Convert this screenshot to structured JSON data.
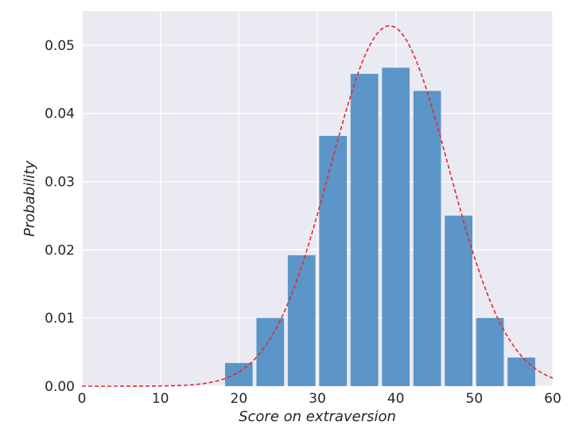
{
  "chart_data": {
    "type": "bar",
    "title": "",
    "xlabel": "Score on extraversion",
    "ylabel": "Probability",
    "xlim": [
      0,
      60
    ],
    "ylim": [
      0,
      0.055
    ],
    "xticks": [
      0,
      10,
      20,
      30,
      40,
      50,
      60
    ],
    "xtick_labels": [
      "0",
      "10",
      "20",
      "30",
      "40",
      "50",
      "60"
    ],
    "yticks": [
      0,
      0.01,
      0.02,
      0.03,
      0.04,
      0.05
    ],
    "ytick_labels": [
      "0.00",
      "0.01",
      "0.02",
      "0.03",
      "0.04",
      "0.05"
    ],
    "grid": true,
    "bar_width": 4,
    "bars": {
      "x": [
        20,
        24,
        28,
        32,
        36,
        40,
        44,
        48,
        52,
        56
      ],
      "values": [
        0.0034,
        0.01,
        0.0192,
        0.0367,
        0.0458,
        0.0467,
        0.0433,
        0.025,
        0.01,
        0.0042
      ]
    },
    "curve": {
      "style": "dashed",
      "distribution": "normal",
      "mean": 39.2,
      "sd": 7.55
    },
    "colors": {
      "background": "#eaeaf2",
      "bar": "#4c8cc3",
      "curve": "#e8262b",
      "grid": "#ffffff"
    }
  }
}
